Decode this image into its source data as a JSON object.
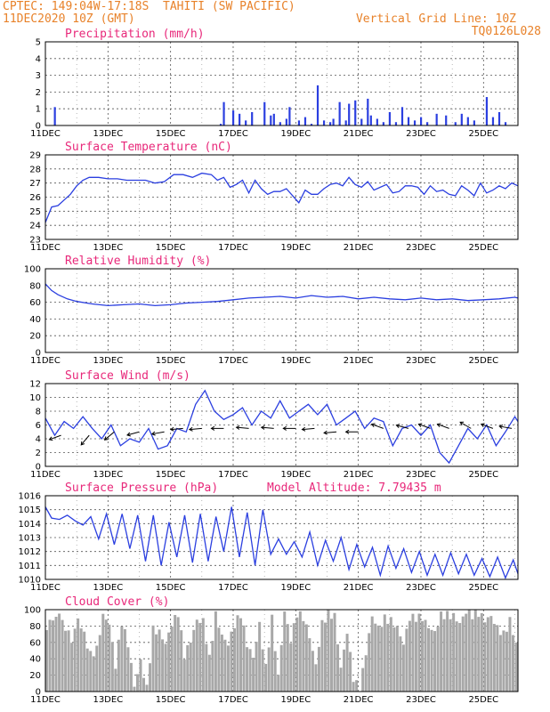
{
  "header": {
    "source": "CPTEC:",
    "coords": "149:04W-17:18S",
    "location": "TAHITI (SW PACIFIC)",
    "date": "11DEC2020 10Z (GMT)",
    "grid_note": "Vertical Grid Line: 10Z",
    "code": "TQ0126L028"
  },
  "colors": {
    "header": "#e8822a",
    "title": "#e8287a",
    "line": "#2b3fe0",
    "bar": "#2b3fe0",
    "cloud": "#a8a8a8"
  },
  "chart_data": [
    {
      "type": "bar",
      "title": "Precipitation (mm/h)",
      "xticks": [
        "11DEC",
        "13DEC",
        "15DEC",
        "17DEC",
        "19DEC",
        "21DEC",
        "23DEC",
        "25DEC"
      ],
      "ylim": [
        0,
        5
      ],
      "yticks": [
        0,
        1,
        2,
        3,
        4,
        5
      ],
      "grid": true,
      "x": [
        0.3,
        5.6,
        5.7,
        6.0,
        6.2,
        6.4,
        6.6,
        7.0,
        7.2,
        7.3,
        7.5,
        7.7,
        7.8,
        8.1,
        8.3,
        8.5,
        8.7,
        8.9,
        9.1,
        9.2,
        9.4,
        9.6,
        9.7,
        9.9,
        10.1,
        10.3,
        10.4,
        10.6,
        10.8,
        11.0,
        11.2,
        11.4,
        11.6,
        11.8,
        12.0,
        12.2,
        12.5,
        12.8,
        13.1,
        13.3,
        13.5,
        13.7,
        14.1,
        14.3,
        14.5,
        14.7
      ],
      "values": [
        1.1,
        0.1,
        1.4,
        0.9,
        0.7,
        0.3,
        0.8,
        1.4,
        0.6,
        0.7,
        0.2,
        0.4,
        1.1,
        0.3,
        0.5,
        0.1,
        2.4,
        0.3,
        0.2,
        0.4,
        1.4,
        0.3,
        1.3,
        1.5,
        0.4,
        1.6,
        0.6,
        0.4,
        0.2,
        0.8,
        0.2,
        1.1,
        0.5,
        0.3,
        0.5,
        0.2,
        0.7,
        0.6,
        0.2,
        0.7,
        0.5,
        0.3,
        1.7,
        0.5,
        0.8,
        0.2
      ]
    },
    {
      "type": "line",
      "title": "Surface Temperature (nC)",
      "xticks": [
        "11DEC",
        "13DEC",
        "15DEC",
        "17DEC",
        "19DEC",
        "21DEC",
        "23DEC",
        "25DEC"
      ],
      "ylim": [
        23,
        29
      ],
      "yticks": [
        23,
        24,
        25,
        26,
        27,
        28,
        29
      ],
      "grid": true,
      "x": [
        0.0,
        0.2,
        0.4,
        0.6,
        0.8,
        1.0,
        1.2,
        1.4,
        1.7,
        2.0,
        2.3,
        2.6,
        2.9,
        3.2,
        3.5,
        3.8,
        4.1,
        4.4,
        4.7,
        5.0,
        5.3,
        5.5,
        5.7,
        5.9,
        6.1,
        6.3,
        6.5,
        6.7,
        6.9,
        7.1,
        7.3,
        7.5,
        7.7,
        7.9,
        8.1,
        8.3,
        8.5,
        8.7,
        8.9,
        9.1,
        9.3,
        9.5,
        9.7,
        9.9,
        10.1,
        10.3,
        10.5,
        10.7,
        10.9,
        11.1,
        11.3,
        11.5,
        11.7,
        11.9,
        12.1,
        12.3,
        12.5,
        12.7,
        12.9,
        13.1,
        13.3,
        13.5,
        13.7,
        13.9,
        14.1,
        14.3,
        14.5,
        14.7,
        14.9,
        15.1
      ],
      "values": [
        24.2,
        25.3,
        25.4,
        25.8,
        26.2,
        26.8,
        27.2,
        27.4,
        27.4,
        27.3,
        27.3,
        27.2,
        27.2,
        27.2,
        27.0,
        27.1,
        27.6,
        27.6,
        27.4,
        27.7,
        27.6,
        27.2,
        27.4,
        26.7,
        26.9,
        27.2,
        26.3,
        27.2,
        26.6,
        26.2,
        26.4,
        26.4,
        26.6,
        26.1,
        25.6,
        26.5,
        26.2,
        26.2,
        26.6,
        26.9,
        27.0,
        26.8,
        27.4,
        26.9,
        26.7,
        27.1,
        26.5,
        26.7,
        26.9,
        26.3,
        26.4,
        26.8,
        26.8,
        26.7,
        26.2,
        26.8,
        26.4,
        26.5,
        26.2,
        26.1,
        26.8,
        26.5,
        26.1,
        27.0,
        26.3,
        26.5,
        26.8,
        26.6,
        27.0,
        26.8
      ]
    },
    {
      "type": "line",
      "title": "Relative Humidity (%)",
      "xticks": [
        "11DEC",
        "13DEC",
        "15DEC",
        "17DEC",
        "19DEC",
        "21DEC",
        "23DEC",
        "25DEC"
      ],
      "ylim": [
        0,
        100
      ],
      "yticks": [
        0,
        20,
        40,
        60,
        80,
        100
      ],
      "grid": true,
      "x": [
        0.0,
        0.2,
        0.4,
        0.7,
        1.0,
        1.5,
        2.0,
        2.5,
        3.0,
        3.5,
        4.0,
        4.5,
        5.0,
        5.5,
        6.0,
        6.5,
        7.0,
        7.5,
        8.0,
        8.5,
        9.0,
        9.5,
        10.0,
        10.5,
        11.0,
        11.5,
        12.0,
        12.5,
        13.0,
        13.5,
        14.0,
        14.5,
        15.0,
        15.1
      ],
      "values": [
        82,
        74,
        69,
        64,
        61,
        58,
        56,
        57,
        58,
        56,
        57,
        59,
        60,
        61,
        63,
        65,
        66,
        67,
        65,
        68,
        66,
        67,
        64,
        66,
        64,
        63,
        65,
        63,
        64,
        62,
        63,
        64,
        66,
        65
      ]
    },
    {
      "type": "line",
      "title": "Surface Wind (m/s)",
      "xticks": [
        "11DEC",
        "13DEC",
        "15DEC",
        "17DEC",
        "19DEC",
        "21DEC",
        "23DEC",
        "25DEC"
      ],
      "ylim": [
        0,
        12
      ],
      "yticks": [
        0,
        2,
        4,
        6,
        8,
        10,
        12
      ],
      "grid": true,
      "x": [
        0.0,
        0.3,
        0.6,
        0.9,
        1.2,
        1.5,
        1.8,
        2.1,
        2.4,
        2.7,
        3.0,
        3.3,
        3.6,
        3.9,
        4.2,
        4.5,
        4.8,
        5.1,
        5.4,
        5.7,
        6.0,
        6.3,
        6.6,
        6.9,
        7.2,
        7.5,
        7.8,
        8.1,
        8.4,
        8.7,
        9.0,
        9.3,
        9.6,
        9.9,
        10.2,
        10.5,
        10.8,
        11.1,
        11.4,
        11.7,
        12.0,
        12.3,
        12.6,
        12.9,
        13.2,
        13.5,
        13.8,
        14.1,
        14.4,
        14.7,
        15.0,
        15.1
      ],
      "values": [
        7.0,
        4.5,
        6.5,
        5.5,
        7.2,
        5.5,
        4.0,
        6.0,
        3.0,
        4.0,
        3.5,
        5.5,
        2.5,
        3.0,
        5.5,
        5.0,
        9.0,
        11.0,
        8.0,
        6.8,
        7.5,
        8.5,
        6.0,
        8.0,
        7.0,
        9.5,
        7.0,
        8.0,
        9.0,
        7.5,
        9.0,
        6.0,
        7.0,
        8.0,
        5.5,
        7.0,
        6.5,
        3.0,
        5.5,
        6.0,
        4.5,
        6.0,
        2.0,
        0.5,
        3.0,
        5.5,
        4.0,
        6.0,
        3.0,
        5.0,
        7.2,
        6.5
      ],
      "arrows": {
        "x": [
          0.5,
          1.4,
          2.2,
          3.0,
          3.8,
          4.4,
          5.0,
          5.7,
          6.5,
          7.3,
          8.0,
          8.6,
          9.3,
          10.0,
          10.8,
          11.6,
          12.3,
          12.9,
          13.6,
          14.3,
          14.9
        ],
        "y": [
          4.5,
          4.5,
          5.0,
          5.0,
          5.0,
          5.5,
          5.5,
          5.5,
          5.5,
          5.5,
          5.5,
          5.5,
          5.0,
          5.0,
          5.5,
          5.5,
          5.5,
          5.5,
          5.5,
          5.5,
          5.5
        ],
        "dir": [
          20,
          50,
          40,
          15,
          10,
          5,
          5,
          0,
          -5,
          -5,
          0,
          5,
          5,
          0,
          -20,
          -15,
          -20,
          -20,
          -30,
          -20,
          -10
        ]
      }
    },
    {
      "type": "line",
      "title": "Surface Pressure (hPa)",
      "annotation": "Model Altitude: 7.79435 m",
      "xticks": [
        "11DEC",
        "13DEC",
        "15DEC",
        "17DEC",
        "19DEC",
        "21DEC",
        "23DEC",
        "25DEC"
      ],
      "ylim": [
        1010,
        1016
      ],
      "yticks": [
        1010,
        1011,
        1012,
        1013,
        1014,
        1015,
        1016
      ],
      "grid": true,
      "x": [
        0.0,
        0.2,
        0.45,
        0.7,
        0.95,
        1.2,
        1.45,
        1.7,
        1.95,
        2.2,
        2.45,
        2.7,
        2.95,
        3.2,
        3.45,
        3.7,
        3.95,
        4.2,
        4.45,
        4.7,
        4.95,
        5.2,
        5.45,
        5.7,
        5.95,
        6.2,
        6.45,
        6.7,
        6.95,
        7.2,
        7.45,
        7.7,
        7.95,
        8.2,
        8.45,
        8.7,
        8.95,
        9.2,
        9.45,
        9.7,
        9.95,
        10.2,
        10.45,
        10.7,
        10.95,
        11.2,
        11.45,
        11.7,
        11.95,
        12.2,
        12.45,
        12.7,
        12.95,
        13.2,
        13.45,
        13.7,
        13.95,
        14.2,
        14.45,
        14.7,
        14.95,
        15.1
      ],
      "values": [
        1015.2,
        1014.4,
        1014.3,
        1014.6,
        1014.2,
        1013.9,
        1014.5,
        1012.9,
        1014.7,
        1012.5,
        1014.7,
        1012.2,
        1014.6,
        1011.3,
        1014.6,
        1011.0,
        1014.1,
        1011.6,
        1014.6,
        1011.2,
        1014.7,
        1011.3,
        1014.5,
        1012.0,
        1015.2,
        1011.6,
        1014.8,
        1011.0,
        1015.0,
        1011.8,
        1012.9,
        1011.8,
        1012.7,
        1011.6,
        1013.4,
        1011.0,
        1012.8,
        1011.3,
        1013.0,
        1010.7,
        1012.5,
        1010.9,
        1012.3,
        1010.3,
        1012.4,
        1010.8,
        1012.2,
        1010.5,
        1012.0,
        1010.3,
        1011.8,
        1010.3,
        1011.9,
        1010.4,
        1011.8,
        1010.3,
        1011.5,
        1010.2,
        1011.6,
        1010.1,
        1011.4,
        1010.4
      ]
    },
    {
      "type": "area",
      "title": "Cloud Cover (%)",
      "xticks": [
        "11DEC",
        "13DEC",
        "15DEC",
        "17DEC",
        "19DEC",
        "21DEC",
        "23DEC",
        "25DEC"
      ],
      "ylim": [
        0,
        100
      ],
      "yticks": [
        0,
        20,
        40,
        60,
        80,
        100
      ],
      "grid": true,
      "x": [
        0.0,
        0.3,
        0.6,
        0.8,
        1.0,
        1.2,
        1.4,
        1.6,
        1.8,
        2.0,
        2.2,
        2.4,
        2.6,
        2.8,
        3.0,
        3.2,
        3.4,
        3.6,
        3.8,
        4.0,
        4.2,
        4.4,
        4.6,
        4.8,
        5.0,
        5.2,
        5.4,
        5.6,
        5.8,
        6.0,
        6.2,
        6.4,
        6.6,
        6.8,
        7.0,
        7.2,
        7.4,
        7.6,
        7.8,
        8.0,
        8.2,
        8.4,
        8.6,
        8.8,
        9.0,
        9.2,
        9.4,
        9.6,
        9.8,
        10.0,
        10.2,
        10.4,
        10.6,
        10.8,
        11.0,
        11.2,
        11.4,
        11.6,
        11.8,
        12.0,
        12.2,
        12.4,
        12.6,
        12.8,
        13.0,
        13.2,
        13.4,
        13.6,
        13.8,
        14.0,
        14.2,
        14.4,
        14.6,
        14.8,
        15.0,
        15.1
      ],
      "values": [
        75,
        95,
        80,
        65,
        92,
        72,
        45,
        50,
        90,
        80,
        30,
        85,
        60,
        10,
        40,
        5,
        75,
        70,
        55,
        80,
        95,
        45,
        65,
        90,
        88,
        40,
        92,
        65,
        55,
        80,
        95,
        60,
        45,
        85,
        30,
        88,
        15,
        95,
        60,
        95,
        92,
        70,
        35,
        85,
        95,
        90,
        25,
        70,
        15,
        2,
        50,
        95,
        80,
        90,
        85,
        75,
        55,
        88,
        90,
        92,
        82,
        75,
        95,
        93,
        90,
        80,
        95,
        92,
        97,
        90,
        95,
        80,
        70,
        85,
        55,
        40
      ]
    }
  ]
}
